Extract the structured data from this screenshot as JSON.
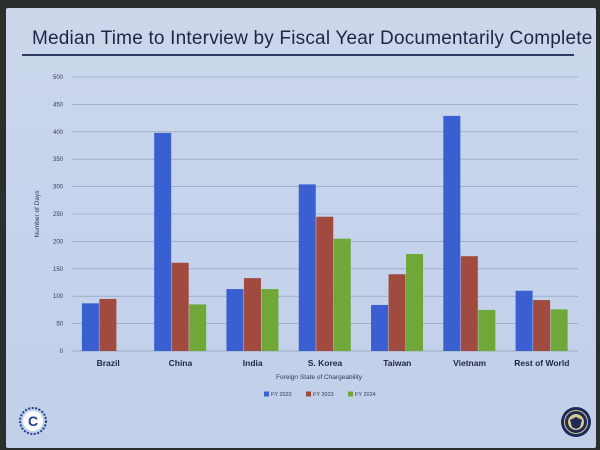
{
  "slide": {
    "title": "Median Time to Interview by Fiscal Year Documentarily Complete"
  },
  "chart_data": {
    "type": "bar",
    "title": "Median Time to Interview by Fiscal Year Documentarily Complete",
    "xlabel": "Foreign State of Chargeability",
    "ylabel": "Number of Days",
    "ylim": [
      0,
      500
    ],
    "yticks": [
      0,
      50,
      100,
      150,
      200,
      250,
      300,
      350,
      400,
      450,
      500
    ],
    "grid": true,
    "legend_position": "bottom",
    "categories": [
      "Brazil",
      "China",
      "India",
      "S. Korea",
      "Taiwan",
      "Vietnam",
      "Rest of World"
    ],
    "series": [
      {
        "name": "FY 2022",
        "color": "#3a5fd0",
        "values": [
          87,
          398,
          113,
          304,
          84,
          429,
          110
        ]
      },
      {
        "name": "FY 2023",
        "color": "#a04a40",
        "values": [
          95,
          161,
          133,
          245,
          140,
          173,
          93
        ]
      },
      {
        "name": "FY 2024",
        "color": "#6fa838",
        "values": [
          null,
          85,
          113,
          205,
          177,
          75,
          76
        ]
      }
    ]
  },
  "logos": {
    "left": "c-shield-logo",
    "right": "state-department-seal"
  }
}
